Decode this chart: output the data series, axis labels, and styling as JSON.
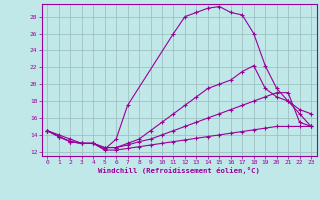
{
  "xlabel": "Windchill (Refroidissement éolien,°C)",
  "bg_color": "#c0e8e8",
  "line_color": "#990099",
  "grid_color": "#99bbbb",
  "xlim": [
    -0.5,
    23.5
  ],
  "ylim": [
    11.5,
    29.5
  ],
  "xticks": [
    0,
    1,
    2,
    3,
    4,
    5,
    6,
    7,
    8,
    9,
    10,
    11,
    12,
    13,
    14,
    15,
    16,
    17,
    18,
    19,
    20,
    21,
    22,
    23
  ],
  "yticks": [
    12,
    14,
    16,
    18,
    20,
    22,
    24,
    26,
    28
  ],
  "curve1_x": [
    0,
    1,
    2,
    3,
    4,
    5,
    6,
    7,
    11,
    12,
    13,
    14,
    15,
    16,
    17,
    18,
    19,
    20,
    21,
    22,
    23
  ],
  "curve1_y": [
    14.5,
    14.0,
    13.5,
    13.0,
    13.0,
    12.3,
    13.5,
    17.5,
    26.0,
    28.0,
    28.5,
    29.0,
    29.2,
    28.5,
    28.2,
    26.0,
    22.2,
    19.5,
    18.0,
    16.5,
    15.0
  ],
  "curve2_x": [
    0,
    1,
    2,
    3,
    4,
    5,
    6,
    7,
    8,
    9,
    10,
    11,
    12,
    13,
    14,
    15,
    16,
    17,
    18,
    19,
    20,
    21,
    22,
    23
  ],
  "curve2_y": [
    14.5,
    13.8,
    13.2,
    13.0,
    13.0,
    12.5,
    12.5,
    13.0,
    13.5,
    14.5,
    15.5,
    16.5,
    17.5,
    18.5,
    19.5,
    20.0,
    20.5,
    21.5,
    22.2,
    19.5,
    18.5,
    18.0,
    17.0,
    16.5
  ],
  "curve3_x": [
    0,
    1,
    2,
    3,
    4,
    5,
    6,
    7,
    8,
    9,
    10,
    11,
    12,
    13,
    14,
    15,
    16,
    17,
    18,
    19,
    20,
    21,
    22,
    23
  ],
  "curve3_y": [
    14.5,
    13.8,
    13.2,
    13.0,
    13.0,
    12.5,
    12.5,
    12.8,
    13.2,
    13.5,
    14.0,
    14.5,
    15.0,
    15.5,
    16.0,
    16.5,
    17.0,
    17.5,
    18.0,
    18.5,
    19.0,
    19.0,
    15.5,
    15.0
  ],
  "curve4_x": [
    0,
    1,
    2,
    3,
    4,
    5,
    6,
    7,
    8,
    9,
    10,
    11,
    12,
    13,
    14,
    15,
    16,
    17,
    18,
    19,
    20,
    21,
    22,
    23
  ],
  "curve4_y": [
    14.5,
    13.8,
    13.2,
    13.0,
    13.0,
    12.2,
    12.2,
    12.4,
    12.6,
    12.8,
    13.0,
    13.2,
    13.4,
    13.6,
    13.8,
    14.0,
    14.2,
    14.4,
    14.6,
    14.8,
    15.0,
    15.0,
    15.0,
    15.0
  ]
}
